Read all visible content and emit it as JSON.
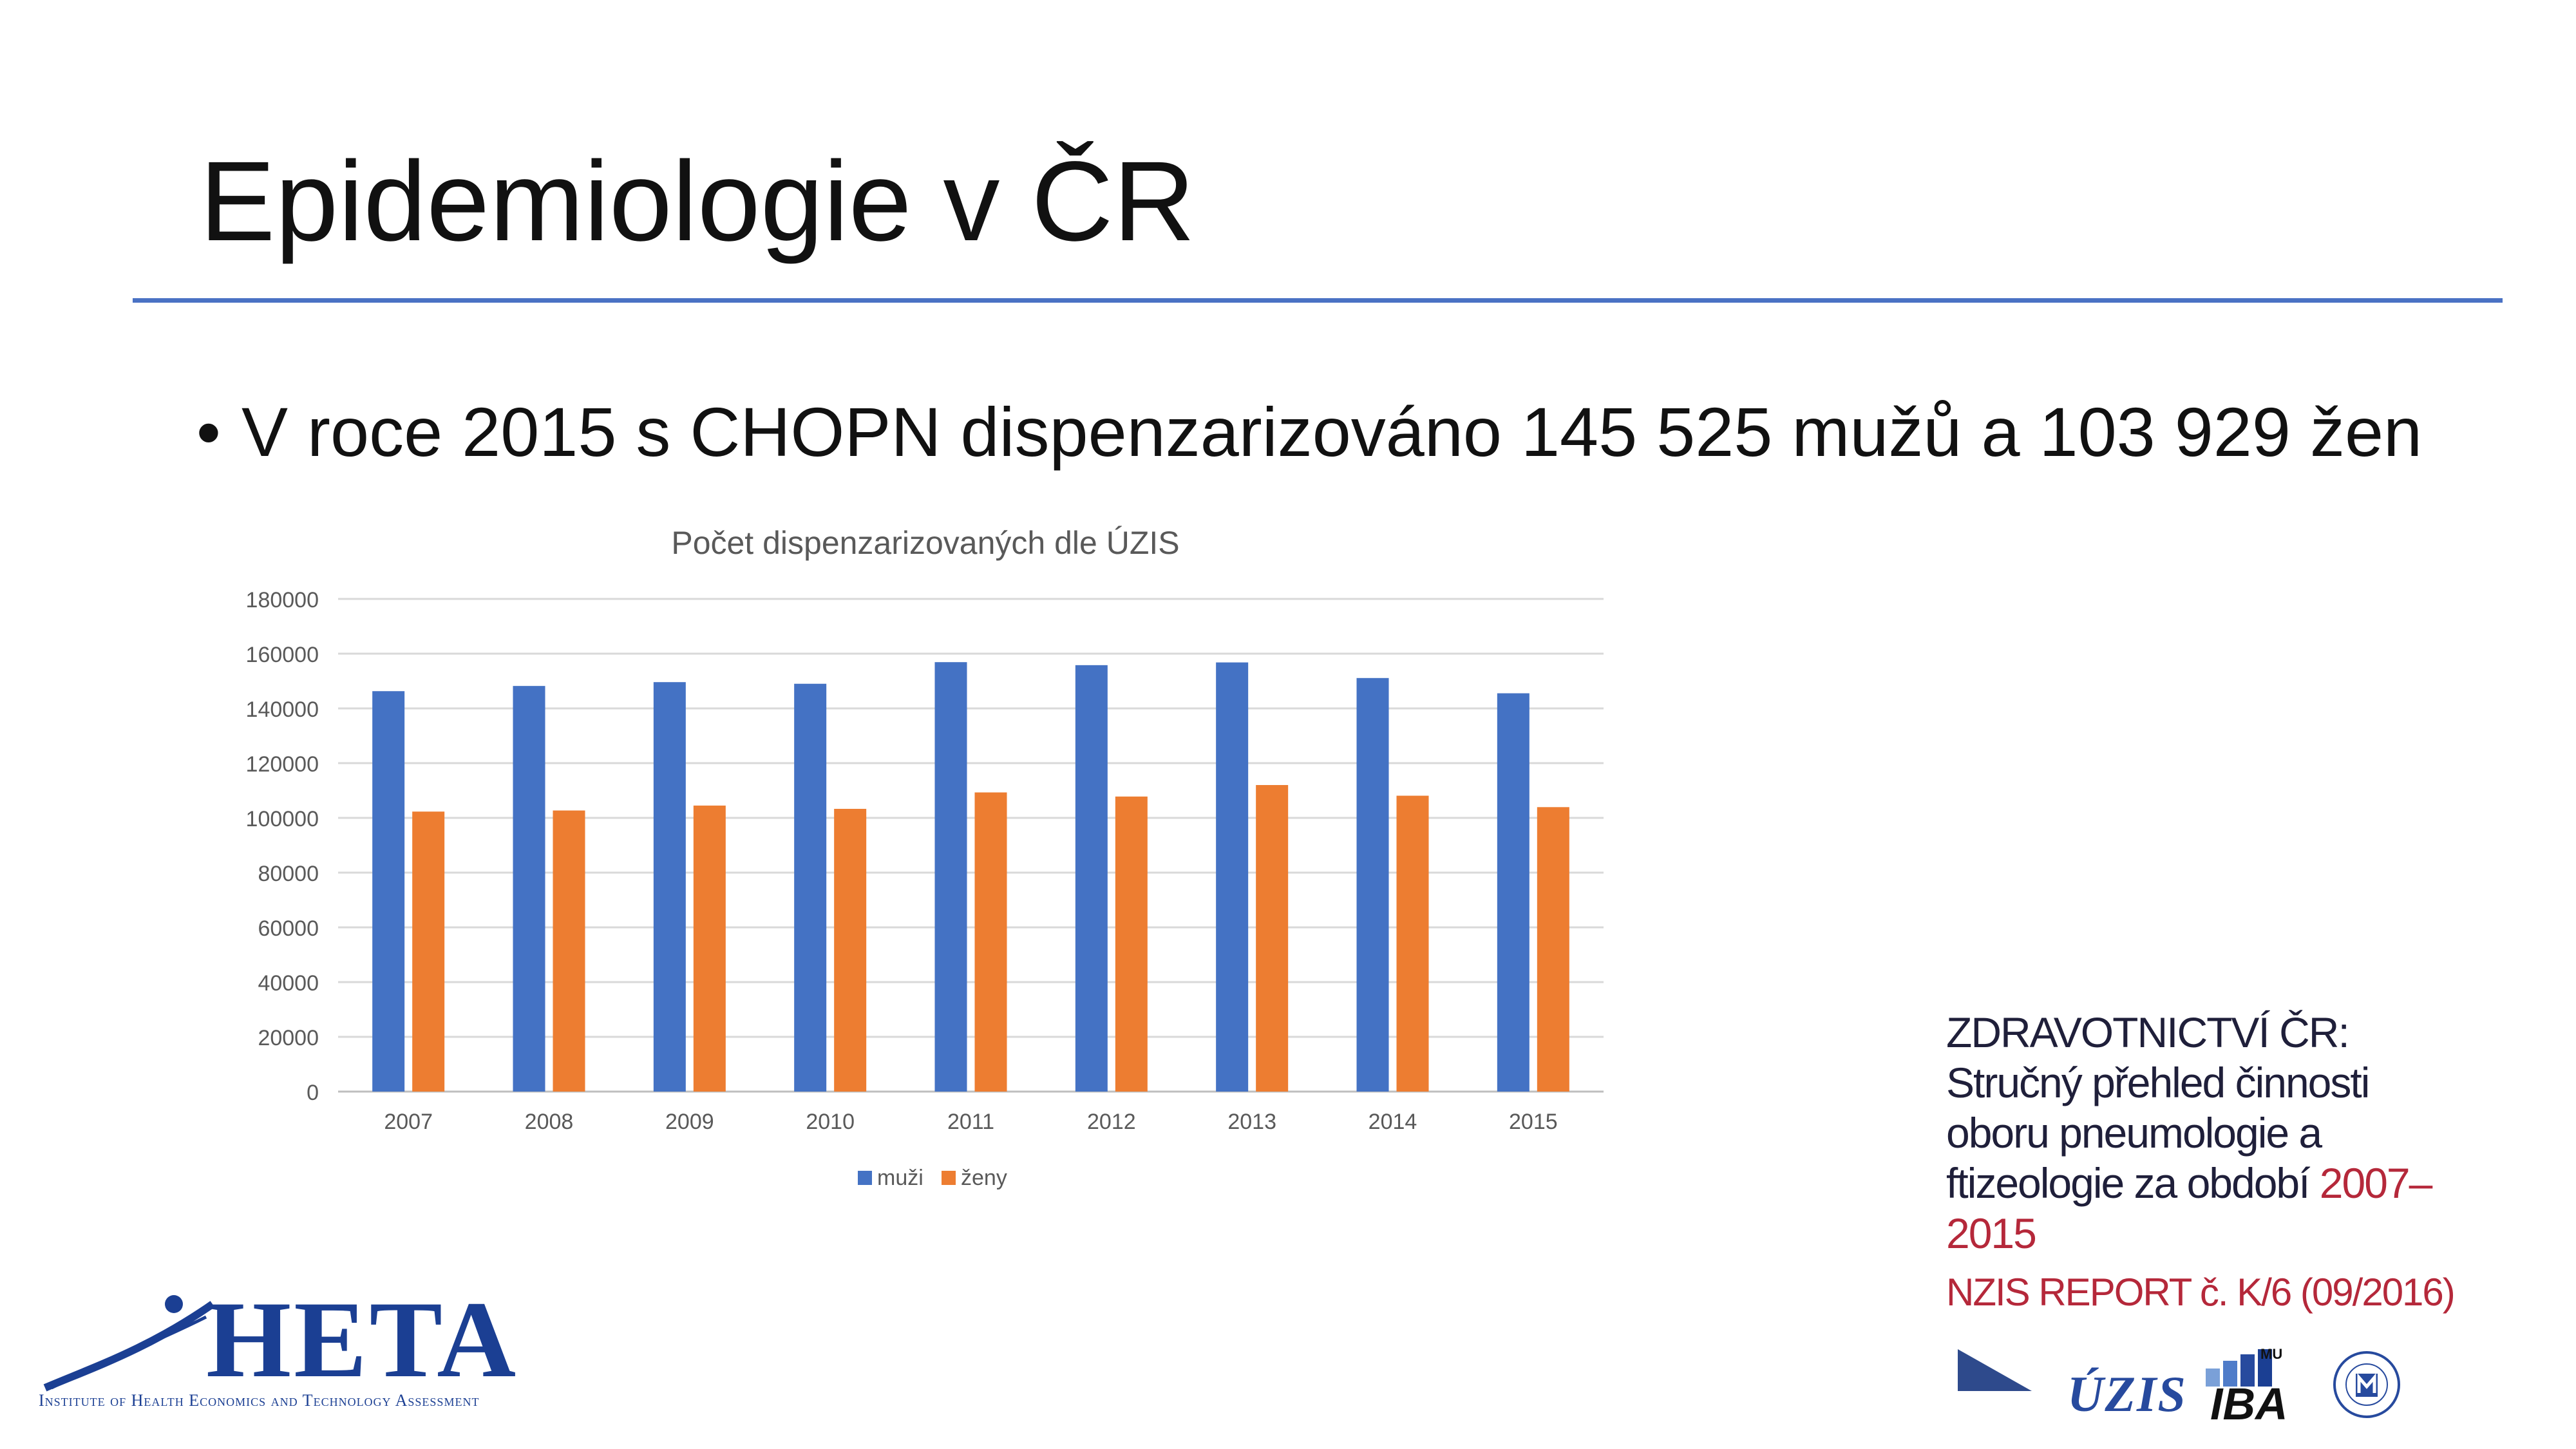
{
  "slide": {
    "title": "Epidemiologie v ČR",
    "bullet_marker": "•",
    "bullet_text": "V roce 2015 s CHOPN dispenzarizováno 145 525 mužů a 103 929 žen"
  },
  "colors": {
    "accent_rule": "#4a72c4",
    "series_muzi": "#4472c4",
    "series_zeny": "#ed7d31",
    "ref_text": "#1f1f3a",
    "ref_red": "#b5283a",
    "logo_blue": "#1b3f93"
  },
  "chart_data": {
    "type": "bar",
    "title": "Počet dispenzarizovaných dle ÚZIS",
    "categories": [
      "2007",
      "2008",
      "2009",
      "2010",
      "2011",
      "2012",
      "2013",
      "2014",
      "2015"
    ],
    "series": [
      {
        "name": "muži",
        "values": [
          146300,
          148200,
          149600,
          149000,
          156900,
          155800,
          156800,
          151100,
          145525
        ]
      },
      {
        "name": "ženy",
        "values": [
          102300,
          102700,
          104500,
          103300,
          109300,
          107800,
          112000,
          108100,
          103929
        ]
      }
    ],
    "y_ticks": [
      "0",
      "20000",
      "40000",
      "60000",
      "80000",
      "100000",
      "120000",
      "140000",
      "160000",
      "180000"
    ],
    "ylim": [
      0,
      180000
    ],
    "grid": true,
    "legend_position": "bottom-center"
  },
  "reference": {
    "line1": "ZDRAVOTNICTVÍ ČR:",
    "line2": "Stručný přehled činnosti",
    "line3": "oboru pneumologie a",
    "line4_prefix": "ftizeologie za období ",
    "line4_red": "2007–",
    "line5_red": "2015",
    "line6": "NZIS REPORT č. K/6 (09/2016)"
  },
  "logos": {
    "heta_word": "HETA",
    "heta_subtitle": "Institute of Health Economics and Technology Assessment",
    "uzis": "ÚZIS",
    "iba": "IBA",
    "mu": "MU"
  }
}
